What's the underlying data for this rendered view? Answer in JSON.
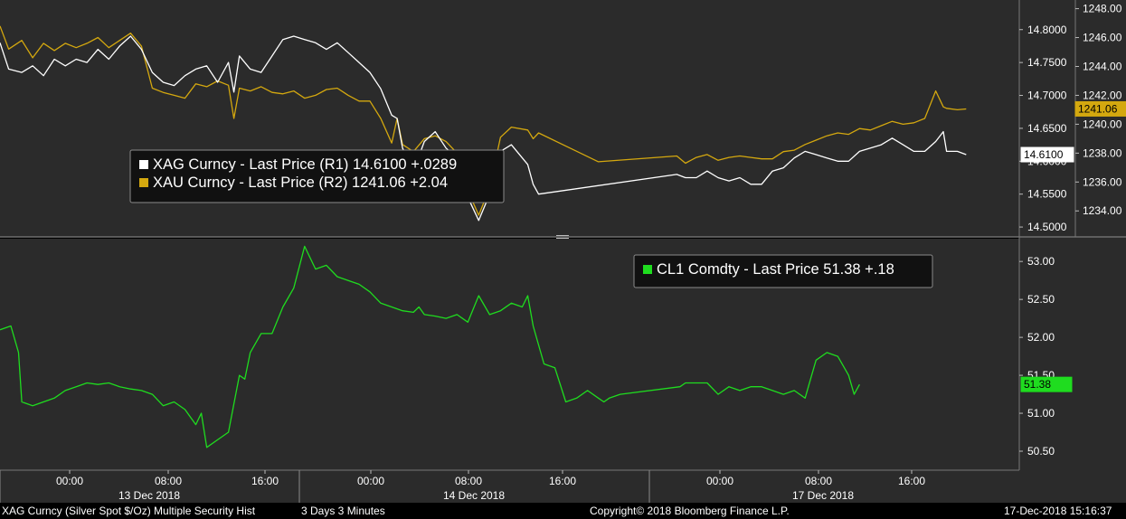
{
  "colors": {
    "background": "#2b2b2b",
    "silver": "#ffffff",
    "gold": "#d4a80f",
    "oil": "#1fdc1f",
    "grid": "#5a5a5a"
  },
  "chart_data": [
    {
      "type": "line",
      "panel": "top",
      "legend": {
        "placement": "center-left",
        "entries": [
          {
            "text": "XAG Curncy - Last Price (R1) 14.6100  +.0289",
            "color": "#ffffff"
          },
          {
            "text": "XAU Curncy - Last Price (R2) 1241.06  +2.04",
            "color": "#d4a80f"
          }
        ]
      },
      "axis_r1": {
        "ticks": [
          "14.8000",
          "14.7500",
          "14.7000",
          "14.6500",
          "14.6000",
          "14.5500",
          "14.5000"
        ],
        "ylim": [
          14.485,
          14.845
        ],
        "last_value": "14.6100"
      },
      "axis_r2": {
        "ticks": [
          "1248.00",
          "1246.00",
          "1244.00",
          "1242.00",
          "1240.00",
          "1238.00",
          "1236.00",
          "1234.00"
        ],
        "ylim": [
          1232.2,
          1248.6
        ],
        "last_value": "1241.06"
      },
      "series": [
        {
          "name": "XAG Curncy - Last Price (R1)",
          "color": "#ffffff",
          "axis": "r1",
          "x": [
            0,
            0.8,
            2,
            3,
            4,
            5,
            6,
            7,
            8,
            9,
            10,
            11,
            12,
            13,
            14,
            15,
            16,
            17,
            18,
            19,
            20,
            21,
            21.5,
            22,
            23,
            24,
            25,
            26,
            27,
            28,
            29,
            30,
            31,
            32,
            33,
            34,
            35,
            36,
            36.5,
            37,
            38,
            39,
            40,
            41,
            42,
            43,
            44,
            45,
            46,
            47,
            48.5,
            49,
            49.5,
            62.2,
            63,
            64,
            65,
            66,
            67,
            68,
            69,
            70,
            71,
            72,
            73,
            74,
            75,
            76,
            77,
            78,
            79,
            80,
            81,
            82,
            83,
            84,
            85,
            86,
            86.7,
            87,
            88,
            88.8
          ],
          "values": [
            14.78,
            14.74,
            14.735,
            14.745,
            14.73,
            14.755,
            14.745,
            14.755,
            14.75,
            14.77,
            14.755,
            14.775,
            14.79,
            14.77,
            14.735,
            14.72,
            14.715,
            14.73,
            14.74,
            14.745,
            14.72,
            14.75,
            14.705,
            14.76,
            14.74,
            14.735,
            14.76,
            14.785,
            14.79,
            14.785,
            14.78,
            14.77,
            14.78,
            14.765,
            14.75,
            14.735,
            14.71,
            14.67,
            14.665,
            14.62,
            14.585,
            14.63,
            14.645,
            14.62,
            14.605,
            14.545,
            14.51,
            14.55,
            14.615,
            14.625,
            14.595,
            14.565,
            14.55,
            14.58,
            14.575,
            14.575,
            14.585,
            14.575,
            14.57,
            14.575,
            14.565,
            14.565,
            14.585,
            14.59,
            14.605,
            14.615,
            14.61,
            14.605,
            14.6,
            14.6,
            14.615,
            14.62,
            14.625,
            14.635,
            14.625,
            14.615,
            14.615,
            14.63,
            14.645,
            14.615,
            14.615,
            14.61
          ]
        },
        {
          "name": "XAU Curncy - Last Price (R2)",
          "color": "#d4a80f",
          "axis": "r2",
          "x": [
            0,
            0.8,
            2,
            3,
            4,
            5,
            6,
            7,
            8,
            9,
            10,
            11,
            12,
            13,
            14,
            15,
            16,
            17,
            18,
            19,
            20,
            21,
            21.5,
            22,
            23,
            24,
            25,
            26,
            27,
            28,
            29,
            30,
            31,
            32,
            33,
            34,
            35,
            36,
            36.5,
            37,
            38,
            39,
            40,
            41,
            42,
            43,
            44,
            45,
            46,
            47,
            48.5,
            49,
            49.5,
            55,
            62.2,
            63,
            64,
            65,
            66,
            67,
            68,
            69,
            70,
            71,
            72,
            73,
            74,
            75,
            76,
            77,
            78,
            79,
            80,
            81,
            82,
            83,
            84,
            85,
            86,
            86.7,
            87,
            88,
            88.8
          ],
          "values": [
            1246.8,
            1245.2,
            1245.8,
            1244.6,
            1245.6,
            1245.1,
            1245.6,
            1245.3,
            1245.6,
            1246.0,
            1245.3,
            1245.8,
            1246.3,
            1245.4,
            1242.5,
            1242.2,
            1242.0,
            1241.8,
            1242.8,
            1242.6,
            1243.0,
            1242.7,
            1240.4,
            1242.5,
            1242.3,
            1242.6,
            1242.2,
            1242.1,
            1242.3,
            1241.8,
            1242.0,
            1242.4,
            1242.5,
            1242.0,
            1241.6,
            1241.6,
            1240.4,
            1238.7,
            1240.4,
            1238.6,
            1238.1,
            1239.0,
            1239.2,
            1238.8,
            1238.0,
            1235.4,
            1233.7,
            1235.6,
            1239.1,
            1239.8,
            1239.6,
            1239.0,
            1239.4,
            1237.4,
            1237.8,
            1237.3,
            1237.7,
            1237.9,
            1237.5,
            1237.7,
            1237.8,
            1237.7,
            1237.6,
            1237.6,
            1238.1,
            1238.2,
            1238.6,
            1238.9,
            1239.2,
            1239.4,
            1239.3,
            1239.7,
            1239.6,
            1239.9,
            1240.2,
            1240.0,
            1240.1,
            1240.4,
            1242.3,
            1241.2,
            1241.1,
            1241.0,
            1241.06
          ]
        }
      ]
    },
    {
      "type": "line",
      "panel": "bottom",
      "legend": {
        "placement": "top-right",
        "entries": [
          {
            "text": "CL1 Comdty - Last Price 51.38   +.18",
            "color": "#1fdc1f"
          }
        ]
      },
      "axis_r1": {
        "ticks": [
          "53.00",
          "52.50",
          "52.00",
          "51.50",
          "51.00",
          "50.50"
        ],
        "ylim": [
          50.25,
          53.3
        ],
        "last_value": "51.38"
      },
      "series": [
        {
          "name": "CL1 Comdty - Last Price",
          "color": "#1fdc1f",
          "axis": "r1",
          "x": [
            0,
            1,
            1.7,
            2,
            3,
            4,
            5,
            6,
            7,
            8,
            9,
            10,
            11,
            12,
            13,
            14,
            15,
            16,
            17,
            18,
            18.5,
            19,
            20,
            21,
            22,
            22.5,
            23,
            24,
            25,
            26,
            27,
            28,
            29,
            30,
            31,
            32,
            33,
            34,
            35,
            36,
            37,
            38,
            38.5,
            39,
            40,
            41,
            42,
            43,
            44,
            45,
            46,
            47,
            48,
            48.5,
            49,
            50,
            51,
            52,
            53,
            54,
            55,
            55.5,
            56,
            57,
            62.5,
            63,
            64,
            65,
            66,
            67,
            68,
            69,
            70,
            71,
            72,
            73,
            74,
            74.5,
            75,
            76,
            77,
            78,
            78.5,
            79
          ],
          "values": [
            52.1,
            52.15,
            51.8,
            51.15,
            51.1,
            51.15,
            51.2,
            51.3,
            51.35,
            51.4,
            51.38,
            51.4,
            51.35,
            51.32,
            51.3,
            51.25,
            51.1,
            51.15,
            51.05,
            50.85,
            51.0,
            50.55,
            50.65,
            50.75,
            51.5,
            51.45,
            51.8,
            52.05,
            52.05,
            52.4,
            52.65,
            53.2,
            52.9,
            52.95,
            52.8,
            52.75,
            52.7,
            52.6,
            52.45,
            52.4,
            52.35,
            52.33,
            52.4,
            52.3,
            52.28,
            52.25,
            52.3,
            52.2,
            52.55,
            52.3,
            52.35,
            52.45,
            52.4,
            52.55,
            52.15,
            51.65,
            51.6,
            51.15,
            51.2,
            51.3,
            51.2,
            51.15,
            51.2,
            51.25,
            51.35,
            51.4,
            51.4,
            51.4,
            51.25,
            51.35,
            51.3,
            51.35,
            51.35,
            51.3,
            51.25,
            51.3,
            51.2,
            51.45,
            51.7,
            51.8,
            51.75,
            51.5,
            51.25,
            51.38
          ]
        }
      ]
    }
  ],
  "x_axis": {
    "hour_ticks": [
      "00:00",
      "08:00",
      "16:00",
      "00:00",
      "08:00",
      "16:00",
      "00:00",
      "08:00",
      "16:00"
    ],
    "date_labels": [
      "13 Dec 2018",
      "14 Dec 2018",
      "17 Dec 2018"
    ]
  },
  "footer": {
    "left": "XAG Curncy (Silver Spot  $/Oz) Multiple Security Hist",
    "period": "3 Days 3 Minutes",
    "copyright": "Copyright© 2018 Bloomberg Finance L.P.",
    "timestamp": "17-Dec-2018 15:16:37"
  }
}
